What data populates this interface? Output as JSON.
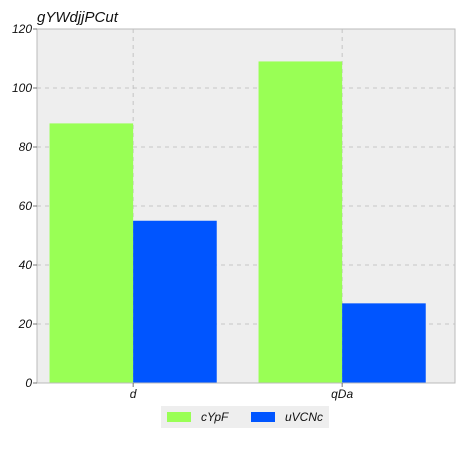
{
  "chart_data": {
    "type": "bar",
    "title": "gYWdjjPCut",
    "xlabel": "",
    "ylabel": "",
    "categories": [
      "d",
      "qDa"
    ],
    "series": [
      {
        "name": "cYpF",
        "values": [
          88,
          109
        ],
        "color": "#99ff55"
      },
      {
        "name": "uVCNc",
        "values": [
          55,
          27
        ],
        "color": "#0055ff"
      }
    ],
    "ylim": [
      0,
      120
    ],
    "yticks": [
      0,
      20,
      40,
      60,
      80,
      100,
      120
    ],
    "grid": true,
    "legend_position": "bottom-center",
    "background_color": "#eeeeee"
  }
}
